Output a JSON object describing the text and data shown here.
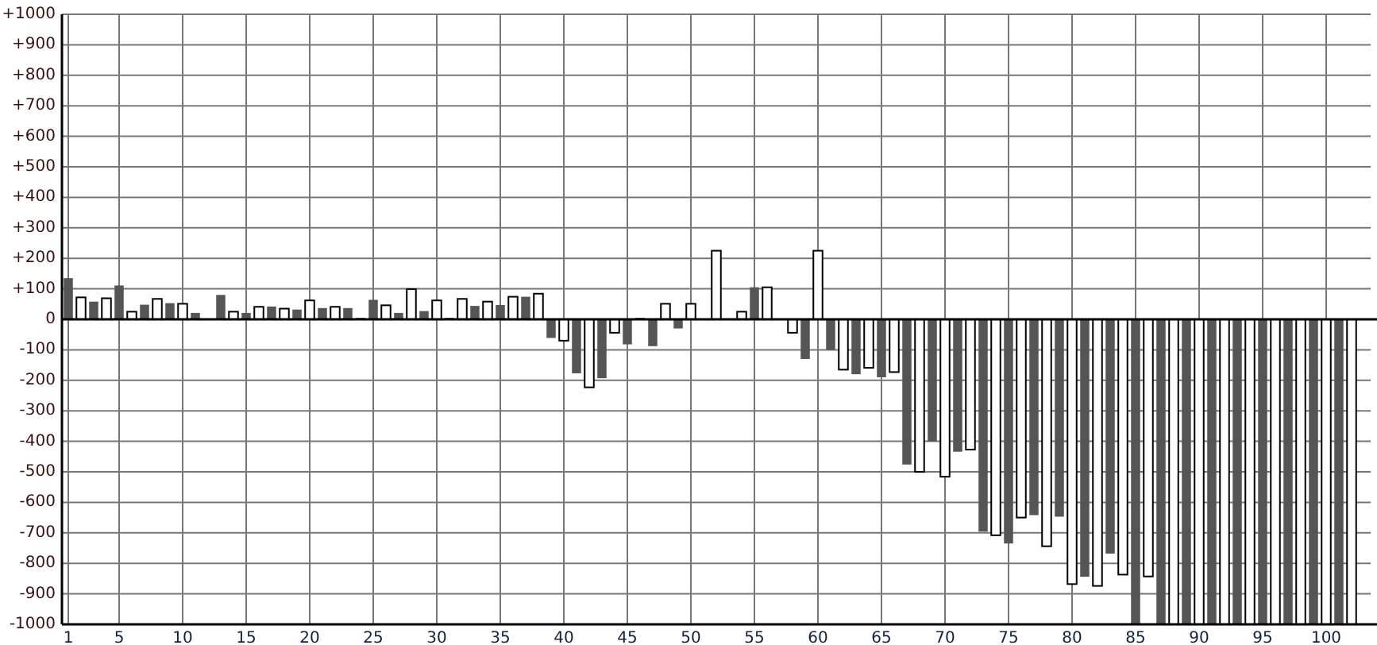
{
  "chart_data": {
    "type": "bar",
    "x": [
      1,
      2,
      3,
      4,
      5,
      6,
      7,
      8,
      9,
      10,
      11,
      13,
      14,
      15,
      16,
      17,
      18,
      19,
      20,
      21,
      22,
      23,
      24,
      25,
      26,
      27,
      28,
      29,
      30,
      31,
      32,
      33,
      34,
      35,
      36,
      37,
      38,
      39,
      40,
      41,
      42,
      43,
      44,
      45,
      46,
      47,
      48,
      49,
      50,
      52,
      54,
      55,
      56,
      58,
      59,
      60,
      61,
      62,
      63,
      64,
      65,
      66,
      67,
      68,
      69,
      70,
      71,
      72,
      73,
      74,
      75,
      76,
      77,
      78,
      79,
      80,
      81,
      82,
      83,
      84,
      85,
      86,
      87,
      88,
      89,
      90,
      91,
      92,
      93,
      94,
      95,
      96,
      97,
      98,
      99,
      100,
      101,
      102
    ],
    "values": [
      135,
      72,
      58,
      69,
      111,
      25,
      48,
      67,
      53,
      51,
      21,
      80,
      25,
      21,
      41,
      42,
      35,
      32,
      62,
      37,
      41,
      37,
      5,
      64,
      46,
      21,
      99,
      27,
      62,
      5,
      67,
      44,
      58,
      47,
      74,
      74,
      84,
      -61,
      -70,
      -177,
      -223,
      -193,
      -44,
      -82,
      5,
      -88,
      51,
      -30,
      51,
      225,
      25,
      105,
      105,
      -44,
      -130,
      225,
      -100,
      -165,
      -180,
      -159,
      -190,
      -173,
      -476,
      -500,
      -400,
      -516,
      -434,
      -427,
      -696,
      -708,
      -735,
      -650,
      -642,
      -744,
      -647,
      -868,
      -844,
      -874,
      -768,
      -837,
      -1000,
      -843,
      -1000,
      -1000,
      -1000,
      -1000,
      -1000,
      -1000,
      -1000,
      -1000,
      -1000,
      -1000,
      -1000,
      -1000,
      -1000,
      -1000,
      -1000,
      -1000
    ],
    "colors": [
      "#555555",
      "#ffffff",
      "#555555",
      "#ffffff",
      "#555555",
      "#ffffff",
      "#555555",
      "#ffffff",
      "#555555",
      "#ffffff",
      "#555555",
      "#555555",
      "#ffffff",
      "#555555",
      "#ffffff",
      "#555555",
      "#ffffff",
      "#555555",
      "#ffffff",
      "#555555",
      "#ffffff",
      "#555555",
      "#555555",
      "#555555",
      "#ffffff",
      "#555555",
      "#ffffff",
      "#555555",
      "#ffffff",
      "#555555",
      "#ffffff",
      "#555555",
      "#ffffff",
      "#555555",
      "#ffffff",
      "#555555",
      "#ffffff",
      "#555555",
      "#ffffff",
      "#555555",
      "#ffffff",
      "#555555",
      "#ffffff",
      "#555555",
      "#555555",
      "#555555",
      "#ffffff",
      "#555555",
      "#ffffff",
      "#ffffff",
      "#ffffff",
      "#555555",
      "#ffffff",
      "#ffffff",
      "#555555",
      "#ffffff",
      "#555555",
      "#ffffff",
      "#555555",
      "#ffffff",
      "#555555",
      "#ffffff",
      "#555555",
      "#ffffff",
      "#555555",
      "#ffffff",
      "#555555",
      "#ffffff",
      "#555555",
      "#ffffff",
      "#555555",
      "#ffffff",
      "#555555",
      "#ffffff",
      "#555555",
      "#ffffff",
      "#555555",
      "#ffffff",
      "#555555",
      "#ffffff",
      "#555555",
      "#ffffff",
      "#555555",
      "#ffffff",
      "#555555",
      "#ffffff",
      "#555555",
      "#ffffff",
      "#555555",
      "#ffffff",
      "#555555",
      "#ffffff",
      "#555555",
      "#ffffff",
      "#555555",
      "#ffffff",
      "#555555",
      "#ffffff"
    ],
    "xlim": [
      0.5,
      103.5
    ],
    "xticks": [
      1,
      5,
      10,
      15,
      20,
      25,
      30,
      35,
      40,
      45,
      50,
      55,
      60,
      65,
      70,
      75,
      80,
      85,
      90,
      95,
      100
    ],
    "ylim": [
      -1000,
      1000
    ],
    "yticks": [
      {
        "value": 1000,
        "label": "+1000"
      },
      {
        "value": 900,
        "label": "+900"
      },
      {
        "value": 800,
        "label": "+800"
      },
      {
        "value": 700,
        "label": "+700"
      },
      {
        "value": 600,
        "label": "+600"
      },
      {
        "value": 500,
        "label": "+500"
      },
      {
        "value": 400,
        "label": "+400"
      },
      {
        "value": 300,
        "label": "+300"
      },
      {
        "value": 200,
        "label": "+200"
      },
      {
        "value": 100,
        "label": "+100"
      },
      0,
      -100,
      -200,
      -300,
      -400,
      -500,
      -600,
      -700,
      -800,
      -900,
      -1000
    ],
    "grid": true
  }
}
